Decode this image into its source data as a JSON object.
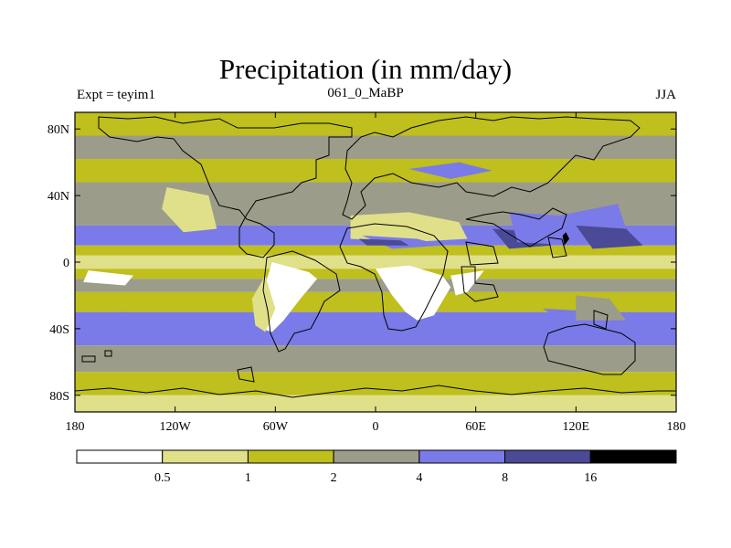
{
  "chart_data": {
    "type": "heatmap",
    "title": "Precipitation (in mm/day)",
    "left_string": "Expt = teyim1",
    "center_string": "061_0_MaBP",
    "right_string": "JJA",
    "variable": "Precipitation",
    "units": "mm/day",
    "x_ticks": [
      "180",
      "120W",
      "60W",
      "0",
      "60E",
      "120E",
      "180"
    ],
    "y_ticks": [
      "80N",
      "40N",
      "0",
      "40S",
      "80S"
    ],
    "xlim": [
      -180,
      180
    ],
    "ylim": [
      -90,
      90
    ],
    "colorbar": {
      "levels": [
        "0.5",
        "1",
        "2",
        "4",
        "8",
        "16"
      ],
      "colors": [
        "#ffffff",
        "#e0e08a",
        "#bfbf1d",
        "#9c9c8a",
        "#7a7ae8",
        "#4a4a96",
        "#000000"
      ]
    },
    "bands": [
      {
        "lat": [
          76,
          90
        ],
        "class": 2
      },
      {
        "lat": [
          62,
          76
        ],
        "class": 3
      },
      {
        "lat": [
          48,
          62
        ],
        "class": 2
      },
      {
        "lat": [
          22,
          48
        ],
        "class": 3
      },
      {
        "lat": [
          10,
          22
        ],
        "class": 4
      },
      {
        "lat": [
          4,
          10
        ],
        "class": 2
      },
      {
        "lat": [
          -4,
          4
        ],
        "class": 1
      },
      {
        "lat": [
          -10,
          -4
        ],
        "class": 2
      },
      {
        "lat": [
          -18,
          -10
        ],
        "class": 3
      },
      {
        "lat": [
          -30,
          -18
        ],
        "class": 2
      },
      {
        "lat": [
          -50,
          -30
        ],
        "class": 4
      },
      {
        "lat": [
          -66,
          -50
        ],
        "class": 3
      },
      {
        "lat": [
          -80,
          -66
        ],
        "class": 2
      },
      {
        "lat": [
          -90,
          -80
        ],
        "class": 1
      }
    ],
    "patches": [
      {
        "type": "poly",
        "class": 0,
        "pts": [
          [
            -62,
            0
          ],
          [
            -40,
            -6
          ],
          [
            -35,
            -10
          ],
          [
            -45,
            -22
          ],
          [
            -55,
            -35
          ],
          [
            -62,
            -42
          ],
          [
            -68,
            -40
          ],
          [
            -72,
            -25
          ],
          [
            -65,
            -10
          ]
        ]
      },
      {
        "type": "poly",
        "class": 1,
        "pts": [
          [
            -66,
            -8
          ],
          [
            -60,
            -28
          ],
          [
            -66,
            -42
          ],
          [
            -72,
            -38
          ],
          [
            -74,
            -22
          ]
        ]
      },
      {
        "type": "poly",
        "class": 0,
        "pts": [
          [
            0,
            -4
          ],
          [
            20,
            -2
          ],
          [
            40,
            -8
          ],
          [
            45,
            -15
          ],
          [
            35,
            -32
          ],
          [
            25,
            -35
          ],
          [
            18,
            -30
          ],
          [
            10,
            -20
          ],
          [
            5,
            -12
          ]
        ]
      },
      {
        "type": "poly",
        "class": 0,
        "pts": [
          [
            45,
            -8
          ],
          [
            65,
            -5
          ],
          [
            55,
            -18
          ],
          [
            48,
            -20
          ]
        ]
      },
      {
        "type": "poly",
        "class": 0,
        "pts": [
          [
            -172,
            -5
          ],
          [
            -145,
            -8
          ],
          [
            -150,
            -14
          ],
          [
            -175,
            -12
          ]
        ]
      },
      {
        "type": "poly",
        "class": 0,
        "pts": [
          [
            -118,
            38
          ],
          [
            -108,
            35
          ],
          [
            -102,
            22
          ],
          [
            -112,
            22
          ],
          [
            -120,
            30
          ]
        ]
      },
      {
        "type": "poly",
        "class": 1,
        "pts": [
          [
            -125,
            45
          ],
          [
            -100,
            40
          ],
          [
            -95,
            20
          ],
          [
            -115,
            18
          ],
          [
            -128,
            32
          ]
        ]
      },
      {
        "type": "poly",
        "class": 1,
        "pts": [
          [
            -15,
            28
          ],
          [
            20,
            30
          ],
          [
            50,
            24
          ],
          [
            55,
            14
          ],
          [
            20,
            12
          ],
          [
            -15,
            14
          ]
        ]
      },
      {
        "type": "poly",
        "class": 4,
        "pts": [
          [
            -8,
            16
          ],
          [
            25,
            14
          ],
          [
            40,
            10
          ],
          [
            10,
            8
          ]
        ]
      },
      {
        "type": "poly",
        "class": 5,
        "pts": [
          [
            -10,
            14
          ],
          [
            15,
            13
          ],
          [
            20,
            10
          ],
          [
            -5,
            10
          ]
        ]
      },
      {
        "type": "poly",
        "class": 5,
        "pts": [
          [
            70,
            20
          ],
          [
            100,
            18
          ],
          [
            105,
            10
          ],
          [
            80,
            8
          ]
        ]
      },
      {
        "type": "poly",
        "class": 4,
        "pts": [
          [
            80,
            30
          ],
          [
            110,
            28
          ],
          [
            145,
            35
          ],
          [
            150,
            20
          ],
          [
            120,
            10
          ],
          [
            85,
            12
          ]
        ]
      },
      {
        "type": "poly",
        "class": 5,
        "pts": [
          [
            120,
            22
          ],
          [
            150,
            20
          ],
          [
            160,
            10
          ],
          [
            130,
            8
          ]
        ]
      },
      {
        "type": "poly",
        "class": 6,
        "pts": [
          [
            112,
            16
          ],
          [
            114,
            18
          ],
          [
            116,
            14
          ],
          [
            113,
            10
          ]
        ]
      },
      {
        "type": "poly",
        "class": 4,
        "pts": [
          [
            20,
            56
          ],
          [
            50,
            60
          ],
          [
            70,
            55
          ],
          [
            45,
            50
          ]
        ]
      },
      {
        "type": "poly",
        "class": 4,
        "pts": [
          [
            -150,
            -30
          ],
          [
            -100,
            -35
          ],
          [
            -80,
            -40
          ],
          [
            -120,
            -48
          ],
          [
            -170,
            -45
          ]
        ]
      },
      {
        "type": "poly",
        "class": 4,
        "pts": [
          [
            100,
            -28
          ],
          [
            140,
            -30
          ],
          [
            170,
            -40
          ],
          [
            130,
            -45
          ]
        ]
      },
      {
        "type": "poly",
        "class": 3,
        "pts": [
          [
            120,
            -20
          ],
          [
            140,
            -22
          ],
          [
            150,
            -35
          ],
          [
            120,
            -35
          ]
        ]
      }
    ]
  }
}
